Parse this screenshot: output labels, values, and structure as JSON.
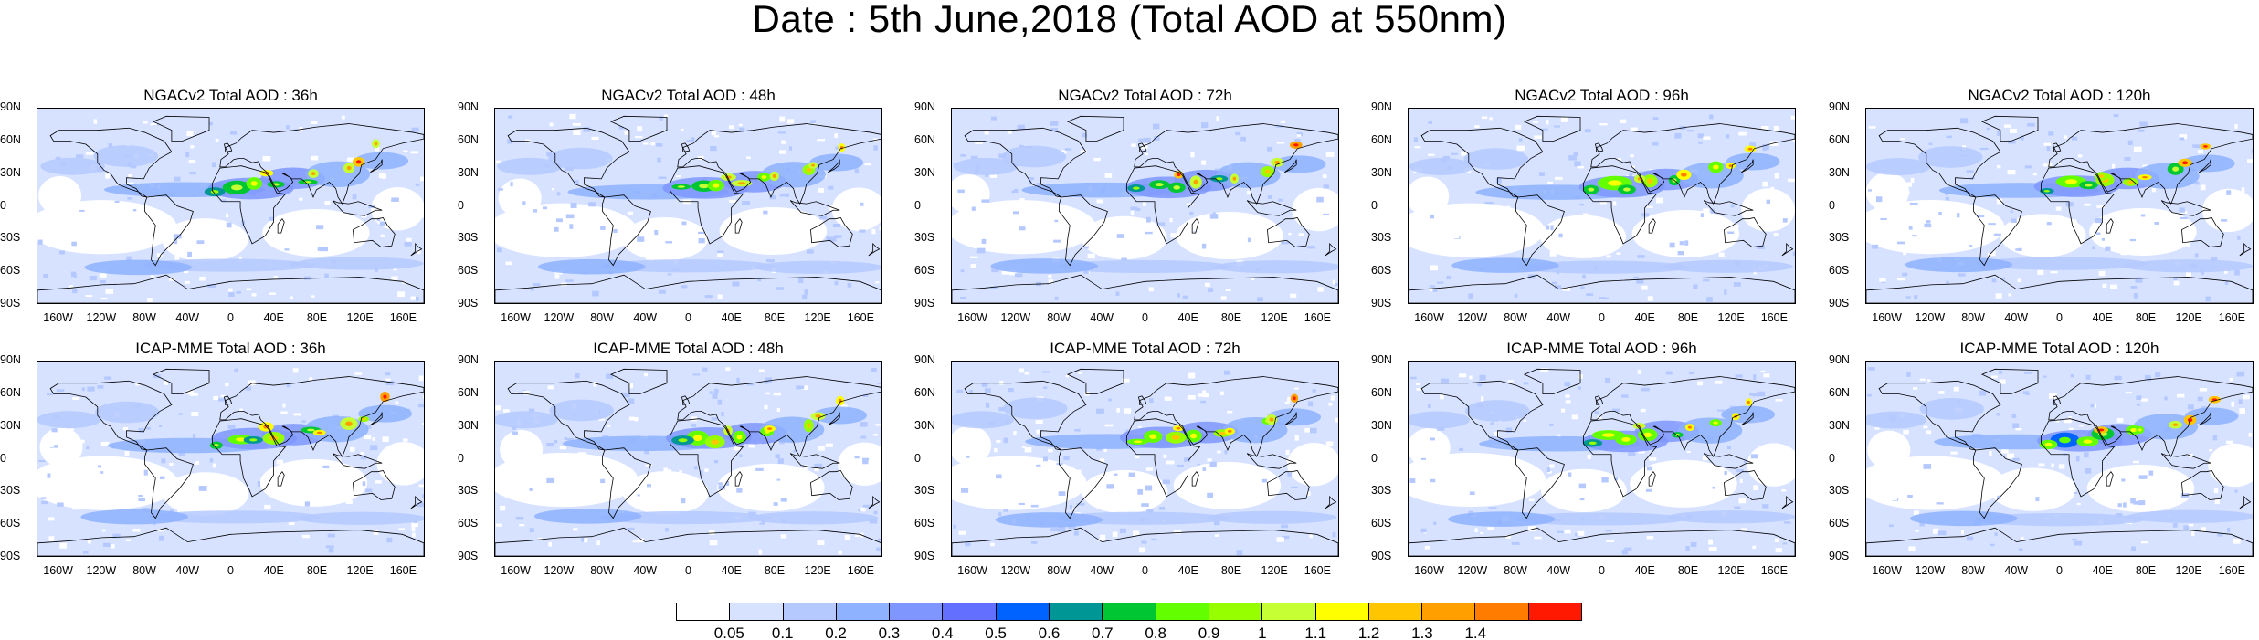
{
  "title": "Date : 5th June,2018 (Total AOD at 550nm)",
  "panels": [
    {
      "title": "NGACv2 Total AOD : 36h",
      "model": "NGACv2",
      "lead": "36h"
    },
    {
      "title": "NGACv2 Total AOD : 48h",
      "model": "NGACv2",
      "lead": "48h"
    },
    {
      "title": "NGACv2 Total AOD : 72h",
      "model": "NGACv2",
      "lead": "72h"
    },
    {
      "title": "NGACv2 Total AOD : 96h",
      "model": "NGACv2",
      "lead": "96h"
    },
    {
      "title": "NGACv2 Total AOD : 120h",
      "model": "NGACv2",
      "lead": "120h"
    },
    {
      "title": "ICAP-MME Total AOD : 36h",
      "model": "ICAP-MME",
      "lead": "36h"
    },
    {
      "title": "ICAP-MME Total AOD : 48h",
      "model": "ICAP-MME",
      "lead": "48h"
    },
    {
      "title": "ICAP-MME Total AOD : 72h",
      "model": "ICAP-MME",
      "lead": "72h"
    },
    {
      "title": "ICAP-MME Total AOD : 96h",
      "model": "ICAP-MME",
      "lead": "96h"
    },
    {
      "title": "ICAP-MME Total AOD : 120h",
      "model": "ICAP-MME",
      "lead": "120h"
    }
  ],
  "lat_labels": [
    "90N",
    "60N",
    "30N",
    "0",
    "30S",
    "60S",
    "90S"
  ],
  "lat_values": [
    90,
    60,
    30,
    0,
    -30,
    -60,
    -90
  ],
  "lon_labels": [
    "160W",
    "120W",
    "80W",
    "40W",
    "0",
    "40E",
    "80E",
    "120E",
    "160E"
  ],
  "lon_values": [
    -160,
    -120,
    -80,
    -40,
    0,
    40,
    80,
    120,
    160
  ],
  "map_extent": {
    "lon": [
      -180,
      180
    ],
    "lat": [
      -90,
      90
    ]
  },
  "colorbar": {
    "colors": [
      "#ffffff",
      "#d6e2ff",
      "#b5c9ff",
      "#8eb2ff",
      "#7f96ff",
      "#6370ff",
      "#0063ff",
      "#009696",
      "#00c633",
      "#63ff00",
      "#96ff00",
      "#c6ff33",
      "#ffff00",
      "#ffc600",
      "#ffa000",
      "#ff7c00",
      "#ff1900"
    ],
    "labels": [
      "0.05",
      "0.1",
      "0.2",
      "0.3",
      "0.4",
      "0.5",
      "0.6",
      "0.7",
      "0.8",
      "0.9",
      "1",
      "1.1",
      "1.2",
      "1.3",
      "1.4"
    ]
  },
  "colors": {
    "ocean_base": "#d6e2ff",
    "land_low": "#ffffff",
    "coast": "#000000"
  }
}
